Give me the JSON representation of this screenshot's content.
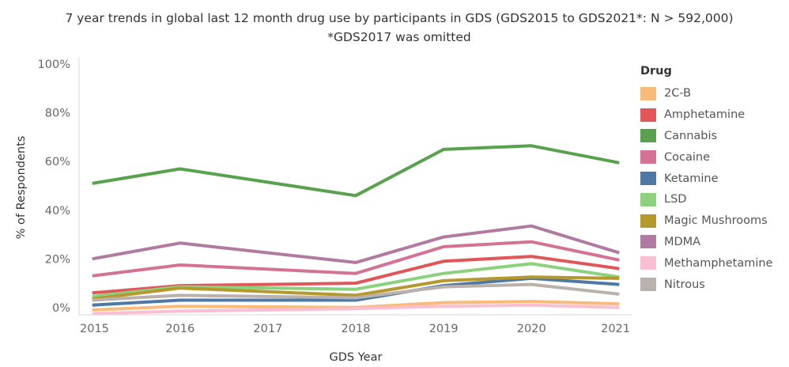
{
  "title_line1": "7 year trends in global last 12 month drug use by participants in GDS (GDS2015 to GDS2021*: N > 592,000)",
  "title_line2": "*GDS2017 was omitted",
  "chart_data": {
    "type": "line",
    "title": "7 year trends in global last 12 month drug use by participants in GDS (GDS2015 to GDS2021*: N > 592,000)",
    "subtitle": "*GDS2017 was omitted",
    "xlabel": "GDS Year",
    "ylabel": "% of Respondents",
    "x": [
      2015,
      2016,
      2018,
      2019,
      2020,
      2021
    ],
    "x_ticks": [
      "2015",
      "2016",
      "2017",
      "2018",
      "2019",
      "2020",
      "2021"
    ],
    "y_ticks": [
      "0%",
      "20%",
      "40%",
      "60%",
      "80%",
      "100%"
    ],
    "ylim": [
      -3,
      103
    ],
    "legend_title": "Drug",
    "legend_position": "right",
    "series": [
      {
        "name": "2C-B",
        "color": "#F8BB7C",
        "values": [
          -1.0,
          0.5,
          0.0,
          2.0,
          2.5,
          1.5
        ]
      },
      {
        "name": "Amphetamine",
        "color": "#E15759",
        "values": [
          6.0,
          9.0,
          10.0,
          19.0,
          21.0,
          16.0
        ]
      },
      {
        "name": "Cannabis",
        "color": "#59A14F",
        "values": [
          51.0,
          57.0,
          46.0,
          65.0,
          66.5,
          59.5
        ]
      },
      {
        "name": "Cocaine",
        "color": "#D37295",
        "values": [
          13.0,
          17.5,
          14.0,
          25.0,
          27.0,
          19.5
        ]
      },
      {
        "name": "Ketamine",
        "color": "#4E79A7",
        "values": [
          1.0,
          3.0,
          3.0,
          9.0,
          12.0,
          9.5
        ]
      },
      {
        "name": "LSD",
        "color": "#8CD17D",
        "values": [
          4.5,
          8.5,
          7.5,
          14.0,
          18.0,
          12.5
        ]
      },
      {
        "name": "Magic Mushrooms",
        "color": "#B6992D",
        "values": [
          3.5,
          8.0,
          5.0,
          11.0,
          12.5,
          12.0
        ]
      },
      {
        "name": "MDMA",
        "color": "#B07AA1",
        "values": [
          20.0,
          26.5,
          18.5,
          29.0,
          33.5,
          22.5
        ]
      },
      {
        "name": "Methamphetamine",
        "color": "#FABFD2",
        "values": [
          -2.5,
          -1.5,
          -0.5,
          0.5,
          1.0,
          0.0
        ]
      },
      {
        "name": "Nitrous",
        "color": "#BAB0AC",
        "values": [
          3.0,
          5.0,
          4.0,
          8.5,
          9.5,
          5.5
        ]
      }
    ]
  }
}
